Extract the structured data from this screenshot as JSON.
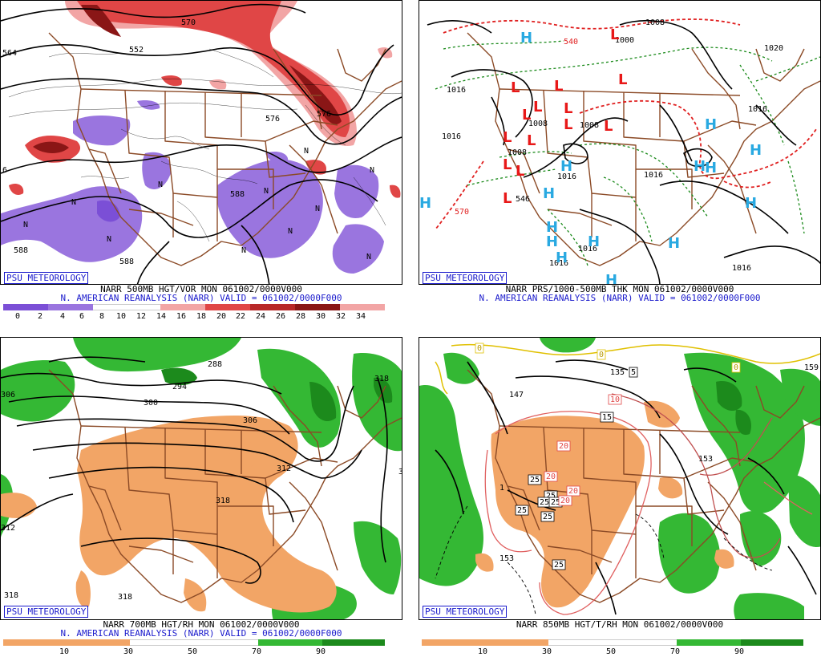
{
  "colors": {
    "vort_neg_dark": "#7b4fd6",
    "vort_neg": "#9a75df",
    "vort_pos_light": "#f2a5a5",
    "vort_pos": "#e04646",
    "vort_pos_dark": "#8a1616",
    "rh_dry": "#f2a566",
    "rh_moist": "#34b834",
    "rh_moist_dark": "#1c8a1c",
    "borders": "#8b4a26",
    "contours": "#000000",
    "thickness_warm": "#e02020",
    "thickness_cold": "#1a8a1a",
    "low_marker": "#e81818",
    "high_marker": "#29a9e1",
    "caption_blue": "#1a1acc"
  },
  "panels": [
    {
      "badge": "PSU METEOROLOGY",
      "caption_line1": "NARR 500MB HGT/VOR MON 061002/0000V000",
      "caption_line2": "N. AMERICAN REANALYSIS (NARR) VALID = 061002/0000F000",
      "contour_labels": [
        "564",
        "552",
        "570",
        "576",
        "576",
        "588",
        "588",
        "588",
        "6"
      ],
      "vort_minima": [
        "N",
        "N",
        "N",
        "N",
        "N",
        "N",
        "N",
        "N",
        "N",
        "N",
        "N"
      ],
      "colorbar_labels": [
        "0",
        "2",
        "4",
        "6",
        "8",
        "10",
        "12",
        "14",
        "16",
        "18",
        "20",
        "22",
        "24",
        "26",
        "28",
        "30",
        "32",
        "34"
      ]
    },
    {
      "badge": "PSU METEOROLOGY",
      "caption_line1": "NARR PRS/1000-500MB THK MON 061002/0000V000",
      "caption_line2": "N. AMERICAN REANALYSIS (NARR) VALID = 061002/0000F000",
      "isobar_labels": [
        "1016",
        "1016",
        "1008",
        "1008",
        "1008",
        "1016",
        "1016",
        "1016",
        "1016",
        "1016",
        "1016",
        "1008",
        "1020",
        "1000"
      ],
      "thickness_labels": [
        "540",
        "570",
        "546"
      ],
      "low_markers": [
        "L",
        "L",
        "L",
        "L",
        "L",
        "L",
        "L",
        "L",
        "L",
        "L",
        "L",
        "L",
        "L",
        "L"
      ],
      "high_markers": [
        "H",
        "H",
        "H",
        "H",
        "H",
        "H",
        "H",
        "H",
        "H",
        "H",
        "H",
        "H",
        "H",
        "H",
        "H"
      ]
    },
    {
      "badge": "PSU METEOROLOGY",
      "caption_line1": "NARR 700MB HGT/RH MON 061002/0000V000",
      "caption_line2": "N. AMERICAN REANALYSIS (NARR) VALID = 061002/0000F000",
      "contour_labels": [
        "288",
        "294",
        "300",
        "306",
        "312",
        "318",
        "318",
        "318",
        "306",
        "312",
        "318",
        "3"
      ],
      "colorbar_labels": [
        "10",
        "30",
        "50",
        "70",
        "90"
      ]
    },
    {
      "badge": "PSU METEOROLOGY",
      "caption_line1": "NARR 850MB HGT/T/RH MON 061002/0000V000",
      "caption_line2": "",
      "contour_labels": [
        "135",
        "147",
        "153",
        "153",
        "159",
        "1"
      ],
      "temperature_labels_boxed": [
        "5",
        "10",
        "15",
        "20",
        "25",
        "20",
        "25",
        "25",
        "20",
        "25",
        "25",
        "20",
        "25",
        "25",
        "0",
        "0",
        "0"
      ],
      "colorbar_labels": [
        "10",
        "30",
        "50",
        "70",
        "90"
      ]
    }
  ]
}
